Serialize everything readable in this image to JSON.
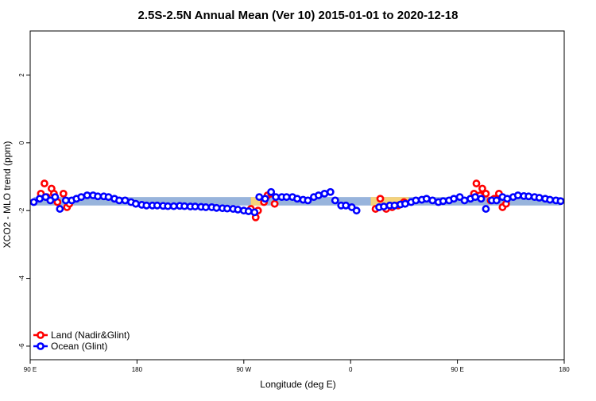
{
  "chart_data": {
    "type": "scatter",
    "title": "2.5S-2.5N Annual Mean (Ver 10)   2015-01-01 to 2020-12-18",
    "xlabel": "Longitude (deg E)",
    "ylabel": "XCO2 - MLO trend (ppm)",
    "xlim": [
      90,
      540
    ],
    "ylim": [
      -6.4,
      3.3
    ],
    "x_ticks": [
      {
        "value": 90,
        "label": "90 E"
      },
      {
        "value": 180,
        "label": "180"
      },
      {
        "value": 270,
        "label": "90 W"
      },
      {
        "value": 360,
        "label": "0"
      },
      {
        "value": 450,
        "label": "90 E"
      },
      {
        "value": 540,
        "label": "180"
      }
    ],
    "y_ticks": [
      {
        "value": 2,
        "label": "2"
      },
      {
        "value": 0,
        "label": "0"
      },
      {
        "value": -2,
        "label": "-2"
      },
      {
        "value": -4,
        "label": "-4"
      },
      {
        "value": -6,
        "label": "-6"
      }
    ],
    "band_blue": {
      "ymin": -1.85,
      "ymax": -1.6,
      "color": "#98b4dc"
    },
    "bands_yellow": [
      {
        "xmin": 276,
        "xmax": 285,
        "ymin": -1.85,
        "ymax": -1.6,
        "color": "#f4d27a"
      },
      {
        "xmin": 377,
        "xmax": 409,
        "ymin": -1.85,
        "ymax": -1.6,
        "color": "#f4d27a"
      }
    ],
    "grid": false,
    "legend_position": "bottom-left",
    "series": [
      {
        "name": "Land (Nadir&Glint)",
        "color": "#ff0000",
        "x": [
          99,
          102,
          104,
          108,
          110,
          113,
          118,
          121,
          123,
          276,
          280,
          282,
          287,
          290,
          293,
          296,
          381,
          385,
          390,
          395,
          400,
          405,
          464,
          466,
          469,
          471,
          474,
          478,
          481,
          485,
          488,
          491
        ],
        "y": [
          -1.5,
          -1.2,
          -1.6,
          -1.35,
          -1.5,
          -1.75,
          -1.5,
          -1.9,
          -1.8,
          -1.95,
          -2.2,
          -2.0,
          -1.75,
          -1.55,
          -1.5,
          -1.8,
          -1.95,
          -1.65,
          -1.95,
          -1.9,
          -1.85,
          -1.75,
          -1.5,
          -1.2,
          -1.55,
          -1.35,
          -1.5,
          -1.7,
          -1.65,
          -1.5,
          -1.9,
          -1.8
        ]
      },
      {
        "name": "Ocean (Glint)",
        "color": "#0000ff",
        "x": [
          93,
          98,
          103,
          107,
          111,
          115,
          120,
          125,
          129,
          133,
          138,
          143,
          147,
          152,
          156,
          161,
          165,
          170,
          175,
          179,
          184,
          188,
          193,
          197,
          202,
          206,
          211,
          216,
          220,
          225,
          229,
          234,
          238,
          243,
          247,
          252,
          256,
          261,
          265,
          270,
          274,
          279,
          283,
          288,
          293,
          297,
          302,
          306,
          311,
          315,
          320,
          324,
          329,
          333,
          338,
          343,
          347,
          352,
          356,
          361,
          365,
          384,
          388,
          393,
          397,
          402,
          406,
          411,
          415,
          420,
          424,
          429,
          434,
          438,
          443,
          447,
          452,
          456,
          461,
          465,
          470,
          474,
          479,
          483,
          488,
          492,
          497,
          501,
          506,
          510,
          515,
          519,
          524,
          528,
          533,
          537
        ],
        "y": [
          -1.75,
          -1.65,
          -1.6,
          -1.7,
          -1.6,
          -1.95,
          -1.7,
          -1.7,
          -1.65,
          -1.6,
          -1.55,
          -1.55,
          -1.58,
          -1.58,
          -1.6,
          -1.65,
          -1.7,
          -1.7,
          -1.75,
          -1.8,
          -1.83,
          -1.85,
          -1.85,
          -1.85,
          -1.86,
          -1.87,
          -1.87,
          -1.86,
          -1.87,
          -1.88,
          -1.88,
          -1.89,
          -1.9,
          -1.9,
          -1.92,
          -1.93,
          -1.94,
          -1.95,
          -1.97,
          -2.0,
          -2.02,
          -2.05,
          -1.6,
          -1.65,
          -1.45,
          -1.6,
          -1.6,
          -1.6,
          -1.6,
          -1.65,
          -1.68,
          -1.7,
          -1.6,
          -1.55,
          -1.5,
          -1.45,
          -1.7,
          -1.85,
          -1.85,
          -1.9,
          -2.0,
          -1.9,
          -1.88,
          -1.85,
          -1.85,
          -1.82,
          -1.8,
          -1.75,
          -1.7,
          -1.68,
          -1.65,
          -1.7,
          -1.75,
          -1.72,
          -1.7,
          -1.65,
          -1.6,
          -1.7,
          -1.65,
          -1.6,
          -1.65,
          -1.95,
          -1.7,
          -1.7,
          -1.6,
          -1.65,
          -1.6,
          -1.55,
          -1.57,
          -1.58,
          -1.6,
          -1.62,
          -1.65,
          -1.68,
          -1.7,
          -1.72
        ]
      }
    ]
  }
}
